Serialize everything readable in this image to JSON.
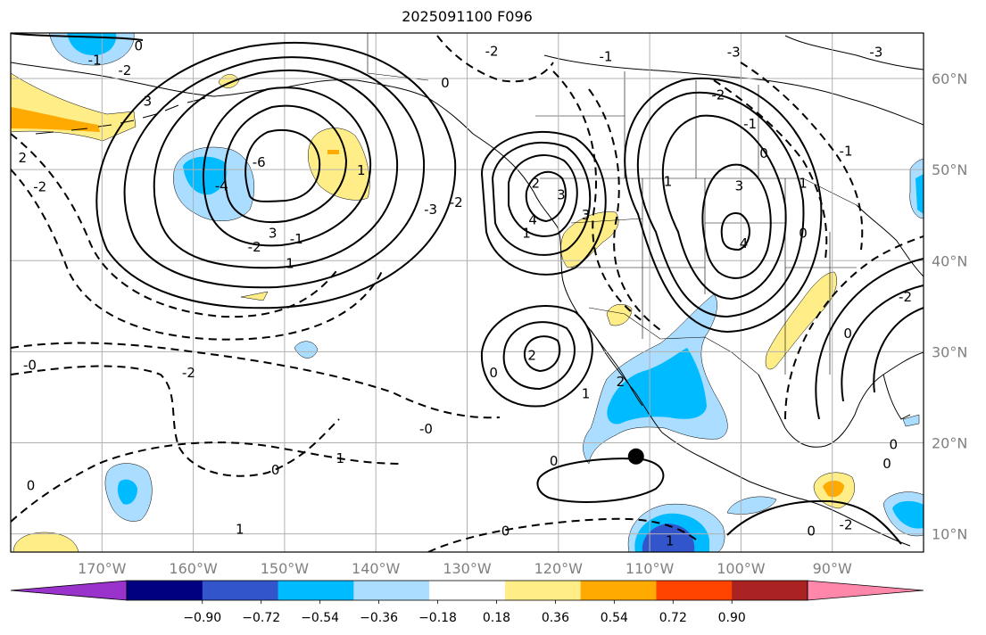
{
  "title": "2025091100 F096",
  "map": {
    "lon_labels": [
      "170°W",
      "160°W",
      "150°W",
      "140°W",
      "130°W",
      "120°W",
      "110°W",
      "100°W",
      "90°W"
    ],
    "lat_labels": [
      "60°N",
      "50°N",
      "40°N",
      "30°N",
      "20°N",
      "10°N"
    ],
    "lon_values": [
      -170,
      -160,
      -150,
      -140,
      -130,
      -120,
      -110,
      -100,
      -90
    ],
    "lat_values": [
      60,
      50,
      40,
      30,
      20,
      10
    ],
    "extent": {
      "lon_min": -180,
      "lon_max": -80,
      "lat_min": 8,
      "lat_max": 65
    },
    "grid": true,
    "colors": {
      "grid": "#b0b0b0",
      "contour": "#000000",
      "axis_label": "#808080"
    }
  },
  "contour_labels": [
    {
      "text": "-1",
      "lon": -170.8,
      "lat": 62.0
    },
    {
      "text": "0",
      "lon": -166.0,
      "lat": 63.6
    },
    {
      "text": "-2",
      "lon": -167.5,
      "lat": 60.9
    },
    {
      "text": "3",
      "lon": -165.0,
      "lat": 57.5
    },
    {
      "text": "2",
      "lon": -178.7,
      "lat": 51.3
    },
    {
      "text": "-2",
      "lon": -176.8,
      "lat": 48.1
    },
    {
      "text": "-4",
      "lon": -156.9,
      "lat": 48.2
    },
    {
      "text": "-6",
      "lon": -152.8,
      "lat": 50.8
    },
    {
      "text": "-2",
      "lon": -153.3,
      "lat": 41.5
    },
    {
      "text": "3",
      "lon": -151.3,
      "lat": 43.0
    },
    {
      "text": "-1",
      "lon": -148.7,
      "lat": 42.4
    },
    {
      "text": "1",
      "lon": -149.4,
      "lat": 39.7
    },
    {
      "text": "-3",
      "lon": -134.0,
      "lat": 45.6
    },
    {
      "text": "-2",
      "lon": -131.2,
      "lat": 46.4
    },
    {
      "text": "0",
      "lon": -132.4,
      "lat": 59.5
    },
    {
      "text": "-2",
      "lon": -127.3,
      "lat": 63.0
    },
    {
      "text": "1",
      "lon": -141.6,
      "lat": 49.9
    },
    {
      "text": "2",
      "lon": -122.5,
      "lat": 48.5
    },
    {
      "text": "3",
      "lon": -119.7,
      "lat": 47.2
    },
    {
      "text": "4",
      "lon": -122.8,
      "lat": 44.5
    },
    {
      "text": "3",
      "lon": -117.0,
      "lat": 45.0
    },
    {
      "text": "1",
      "lon": -123.5,
      "lat": 43.0
    },
    {
      "text": "-1",
      "lon": -114.8,
      "lat": 62.4
    },
    {
      "text": "-3",
      "lon": -100.8,
      "lat": 62.9
    },
    {
      "text": "-2",
      "lon": -102.5,
      "lat": 58.2
    },
    {
      "text": "-1",
      "lon": -99.0,
      "lat": 55.0
    },
    {
      "text": "0",
      "lon": -97.5,
      "lat": 51.8
    },
    {
      "text": "1",
      "lon": -108.0,
      "lat": 48.7
    },
    {
      "text": "3",
      "lon": -100.2,
      "lat": 48.2
    },
    {
      "text": "4",
      "lon": -99.7,
      "lat": 41.9
    },
    {
      "text": "1",
      "lon": -93.2,
      "lat": 48.5
    },
    {
      "text": "0",
      "lon": -93.2,
      "lat": 43.0
    },
    {
      "text": "-3",
      "lon": -85.2,
      "lat": 62.9
    },
    {
      "text": "-1",
      "lon": -88.5,
      "lat": 52.0
    },
    {
      "text": "-2",
      "lon": -82.0,
      "lat": 36.0
    },
    {
      "text": "0",
      "lon": -88.3,
      "lat": 32.0
    },
    {
      "text": "-2",
      "lon": -160.5,
      "lat": 27.7
    },
    {
      "text": "-0",
      "lon": -177.9,
      "lat": 28.5
    },
    {
      "text": "-0",
      "lon": -134.5,
      "lat": 21.5
    },
    {
      "text": "1",
      "lon": -143.9,
      "lat": 18.3
    },
    {
      "text": "0",
      "lon": -151.0,
      "lat": 17.0
    },
    {
      "text": "0",
      "lon": -177.8,
      "lat": 15.3
    },
    {
      "text": "1",
      "lon": -154.9,
      "lat": 10.5
    },
    {
      "text": "0",
      "lon": -120.5,
      "lat": 18.0
    },
    {
      "text": "2",
      "lon": -122.9,
      "lat": 29.6
    },
    {
      "text": "0",
      "lon": -127.1,
      "lat": 27.7
    },
    {
      "text": "1",
      "lon": -117.0,
      "lat": 25.4
    },
    {
      "text": "2",
      "lon": -113.2,
      "lat": 26.7
    },
    {
      "text": "0",
      "lon": -125.8,
      "lat": 10.3
    },
    {
      "text": "1",
      "lon": -107.8,
      "lat": 9.2
    },
    {
      "text": "0",
      "lon": -92.3,
      "lat": 10.3
    },
    {
      "text": "0",
      "lon": -84.0,
      "lat": 17.7
    },
    {
      "text": "0",
      "lon": -83.3,
      "lat": 19.8
    },
    {
      "text": "-2",
      "lon": -88.5,
      "lat": 11.0
    }
  ],
  "marker": {
    "lon": -111.5,
    "lat": 18.5
  },
  "colorbar": {
    "ticks": [
      "−0.90",
      "−0.72",
      "−0.54",
      "−0.36",
      "−0.18",
      "0.18",
      "0.36",
      "0.54",
      "0.72",
      "0.90"
    ],
    "colors": [
      "#9933cc",
      "#000080",
      "#3355cc",
      "#00bbff",
      "#aaddff",
      "#ffffff",
      "#ffee88",
      "#ffaa00",
      "#ff4400",
      "#aa2222",
      "#ff88aa"
    ]
  },
  "shading": {
    "light_blue": "#aaddff",
    "blue": "#00bbff",
    "dark_blue": "#3355cc",
    "light_yellow": "#ffee88",
    "orange": "#ffaa00"
  }
}
